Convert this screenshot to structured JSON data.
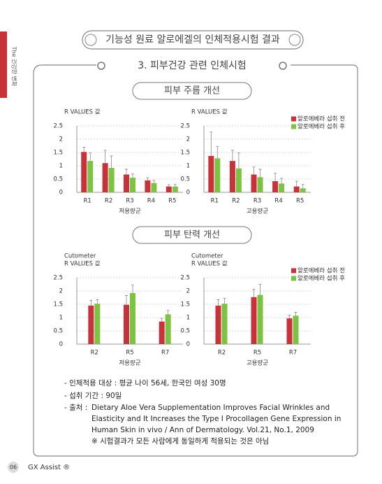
{
  "side_tab": "The 건강한 변화",
  "header": {
    "title": "기능성 원료 알로에겔의 인체적용시험 결과"
  },
  "box_title": "3. 피부건강 관련 인체시험",
  "sections": [
    {
      "heading": "피부 주름 개선"
    },
    {
      "heading": "피부 탄력 개선"
    }
  ],
  "chart_data": [
    {
      "type": "bar",
      "ylabel": [
        "R VALUES 값"
      ],
      "xlabel": "저용량군",
      "categories": [
        "R1",
        "R2",
        "R3",
        "R4",
        "R5"
      ],
      "series": [
        {
          "color": "#c8323a",
          "values": [
            1.52,
            1.1,
            0.67,
            0.45,
            0.22
          ],
          "errors": [
            0.18,
            0.48,
            0.2,
            0.1,
            0.07
          ]
        },
        {
          "color": "#7dc242",
          "values": [
            1.18,
            0.92,
            0.55,
            0.35,
            0.22
          ],
          "errors": [
            0.3,
            0.45,
            0.15,
            0.1,
            0.08
          ]
        }
      ],
      "ylim": [
        0,
        2.5
      ],
      "yticks": [
        0,
        0.5,
        1,
        1.5,
        2,
        2.5
      ],
      "grid": true
    },
    {
      "type": "bar",
      "ylabel": [
        "R VALUES 값"
      ],
      "xlabel": "고용량군",
      "categories": [
        "R1",
        "R2",
        "R3",
        "R4",
        "R5"
      ],
      "series": [
        {
          "name": "알로에베라 섭취 전",
          "color": "#c8323a",
          "values": [
            1.37,
            1.18,
            0.67,
            0.42,
            0.22
          ],
          "errors": [
            0.9,
            0.4,
            0.28,
            0.3,
            0.2
          ]
        },
        {
          "name": "알로에베라 섭취 후",
          "color": "#7dc242",
          "values": [
            1.28,
            0.9,
            0.57,
            0.33,
            0.15
          ],
          "errors": [
            0.45,
            0.58,
            0.3,
            0.2,
            0.15
          ]
        }
      ],
      "ylim": [
        0,
        2.5
      ],
      "yticks": [
        0,
        0.5,
        1,
        1.5,
        2,
        2.5
      ],
      "grid": true,
      "legend": "top-right"
    },
    {
      "type": "bar",
      "ylabel": [
        "Cutometer",
        "R VALUES 값"
      ],
      "xlabel": "저용량군",
      "categories": [
        "R2",
        "R5",
        "R7"
      ],
      "series": [
        {
          "color": "#c8323a",
          "values": [
            1.45,
            1.48,
            0.85
          ],
          "errors": [
            0.2,
            0.35,
            0.12
          ]
        },
        {
          "color": "#7dc242",
          "values": [
            1.52,
            1.92,
            1.12
          ],
          "errors": [
            0.15,
            0.3,
            0.15
          ]
        }
      ],
      "ylim": [
        0,
        2.5
      ],
      "yticks": [
        0,
        0.5,
        1,
        1.5,
        2,
        2.5
      ],
      "grid": true
    },
    {
      "type": "bar",
      "ylabel": [
        "Cutometer",
        "R VALUES 값"
      ],
      "xlabel": "고용량군",
      "categories": [
        "R2",
        "R5",
        "R7"
      ],
      "series": [
        {
          "name": "알로에베라 섭취 전",
          "color": "#c8323a",
          "values": [
            1.45,
            1.77,
            0.97
          ],
          "errors": [
            0.22,
            0.3,
            0.12
          ]
        },
        {
          "name": "알로에베라 섭취 후",
          "color": "#7dc242",
          "values": [
            1.52,
            1.85,
            1.07
          ],
          "errors": [
            0.2,
            0.4,
            0.13
          ]
        }
      ],
      "ylim": [
        0,
        2.5
      ],
      "yticks": [
        0,
        0.5,
        1,
        1.5,
        2,
        2.5
      ],
      "grid": true,
      "legend": "top-right"
    }
  ],
  "notes": {
    "items": [
      "- 인체적용 대상 : 평균 나이 56세, 한국인 여성 30명",
      "- 섭취 기간 : 90일"
    ],
    "source_label": "- 출처 :",
    "source_lines": [
      "Dietary Aloe Vera Supplementation Improves Facial Wrinkles and",
      "Elasticity and It Increases the Type I Procollagen Gene Expression in",
      "Human Skin in vivo / Ann of Dermatology. Vol.21, No.1, 2009"
    ],
    "disclaimer": "※ 시험결과가 모든 사람에게 동일하게 적용되는 것은 아님"
  },
  "footer": {
    "page": "06",
    "brand": "GX Assist ®"
  }
}
